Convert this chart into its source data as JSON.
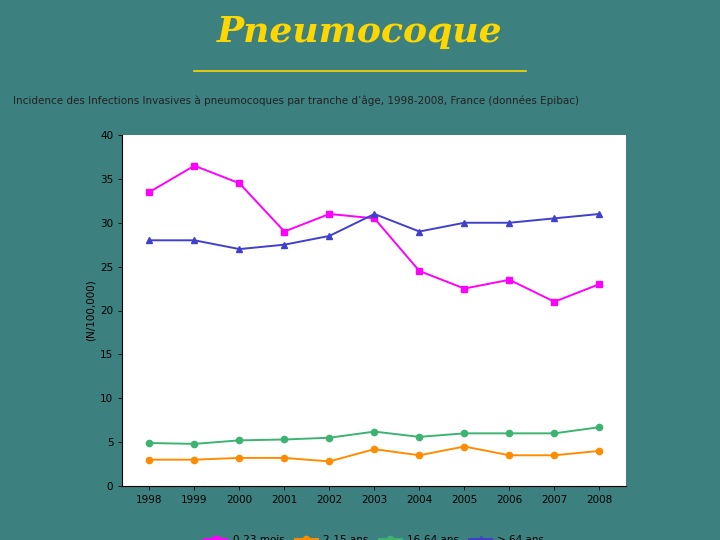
{
  "title": "Pneumocoque",
  "subtitle": "Incidence des Infections Invasives à pneumocoques par tranche d’âge, 1998-2008, France (données Epibac)",
  "years": [
    1998,
    1999,
    2000,
    2001,
    2002,
    2003,
    2004,
    2005,
    2006,
    2007,
    2008
  ],
  "series": {
    "0-23 mois": {
      "values": [
        33.5,
        36.5,
        34.5,
        29.0,
        31.0,
        30.5,
        24.5,
        22.5,
        23.5,
        21.0,
        23.0
      ],
      "color": "#FF00FF",
      "marker": "s",
      "linestyle": "-"
    },
    "2-15 ans": {
      "values": [
        3.0,
        3.0,
        3.2,
        3.2,
        2.8,
        4.2,
        3.5,
        4.5,
        3.5,
        3.5,
        4.0
      ],
      "color": "#FF8C00",
      "marker": "o",
      "linestyle": "-"
    },
    "16-64 ans": {
      "values": [
        4.9,
        4.8,
        5.2,
        5.3,
        5.5,
        6.2,
        5.6,
        6.0,
        6.0,
        6.0,
        6.7
      ],
      "color": "#3CB371",
      "marker": "o",
      "linestyle": "-"
    },
    "> 64 ans": {
      "values": [
        28.0,
        28.0,
        27.0,
        27.5,
        28.5,
        31.0,
        29.0,
        30.0,
        30.0,
        30.5,
        31.0
      ],
      "color": "#4040CC",
      "marker": "^",
      "linestyle": "-"
    }
  },
  "ylabel": "(N/100,000)",
  "ylim": [
    0,
    40
  ],
  "yticks": [
    0,
    5,
    10,
    15,
    20,
    25,
    30,
    35,
    40
  ],
  "background_color": "#3d8080",
  "plot_bg": "#ffffff",
  "title_color": "#FFD700",
  "title_fontsize": 26,
  "subtitle_bg": "#c8d8e8",
  "subtitle_fontsize": 7.5
}
